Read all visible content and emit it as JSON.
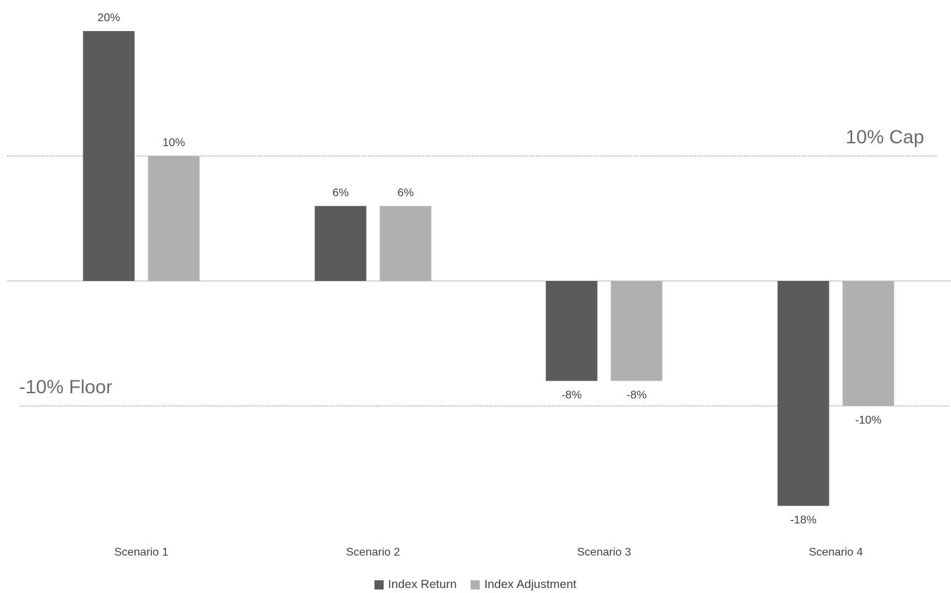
{
  "chart_data": {
    "type": "bar",
    "title": "",
    "xlabel": "",
    "ylabel": "",
    "categories": [
      "Scenario 1",
      "Scenario 2",
      "Scenario 3",
      "Scenario 4"
    ],
    "series": [
      {
        "name": "Index Return",
        "color": "#5b5b5b",
        "values": [
          20,
          6,
          -8,
          -18
        ],
        "labels": [
          "20%",
          "6%",
          "-8%",
          "-18%"
        ]
      },
      {
        "name": "Index Adjustment",
        "color": "#b0b0b0",
        "values": [
          10,
          6,
          -8,
          -10
        ],
        "labels": [
          "10%",
          "6%",
          "-8%",
          "-10%"
        ]
      }
    ],
    "reference_lines": [
      {
        "value": 10,
        "label": "10% Cap",
        "label_position": "right"
      },
      {
        "value": -10,
        "label": "-10% Floor",
        "label_position": "left"
      }
    ],
    "ylim": [
      -20,
      22
    ],
    "grid": false,
    "legend": {
      "position": "bottom",
      "items": [
        {
          "name": "Index Return",
          "color": "#5b5b5b"
        },
        {
          "name": "Index Adjustment",
          "color": "#b0b0b0"
        }
      ]
    }
  }
}
